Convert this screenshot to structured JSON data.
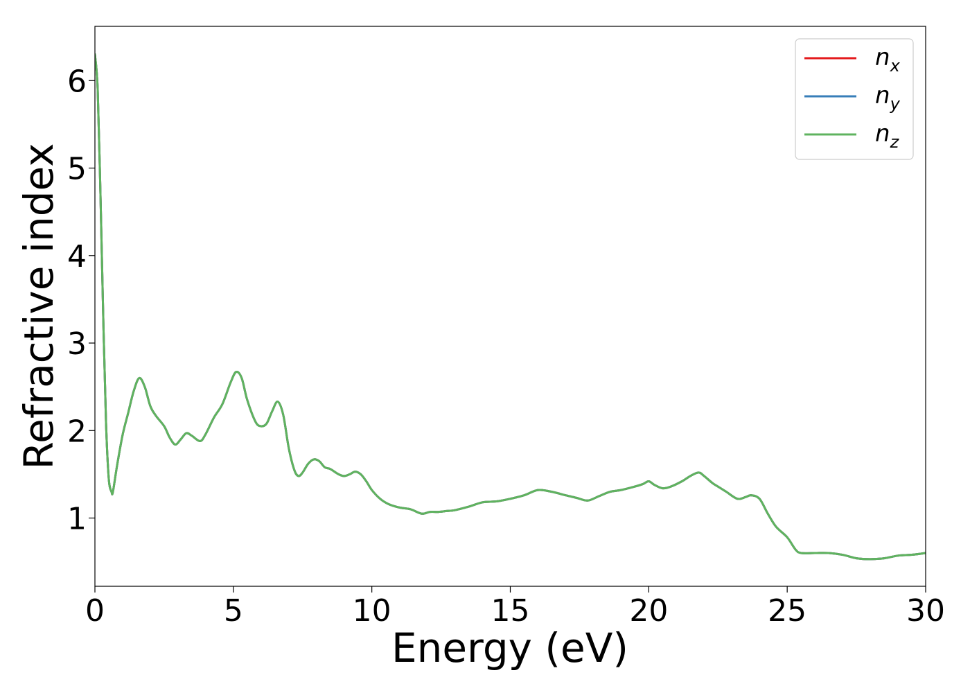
{
  "chart_data": {
    "type": "line",
    "title": "",
    "xlabel": "Energy (eV)",
    "ylabel": "Refractive index",
    "xlim": [
      0,
      30
    ],
    "ylim": [
      0.22,
      6.62
    ],
    "xticks": [
      0,
      5,
      10,
      15,
      20,
      25,
      30
    ],
    "yticks": [
      1,
      2,
      3,
      4,
      5,
      6
    ],
    "grid": false,
    "legend_position": "top-right",
    "series": [
      {
        "name": "n",
        "subscript": "x",
        "color": "#e41a1c"
      },
      {
        "name": "n",
        "subscript": "y",
        "color": "#377eb8"
      },
      {
        "name": "n",
        "subscript": "z",
        "color": "#5fb35f"
      }
    ],
    "x": [
      0.0,
      0.1,
      0.2,
      0.3,
      0.4,
      0.5,
      0.6,
      0.65,
      0.8,
      1.0,
      1.2,
      1.4,
      1.6,
      1.8,
      2.0,
      2.2,
      2.5,
      2.7,
      2.9,
      3.1,
      3.3,
      3.5,
      3.8,
      4.0,
      4.3,
      4.6,
      4.9,
      5.1,
      5.3,
      5.5,
      5.8,
      6.0,
      6.2,
      6.4,
      6.6,
      6.8,
      7.0,
      7.2,
      7.35,
      7.5,
      7.7,
      7.9,
      8.1,
      8.3,
      8.5,
      8.8,
      9.0,
      9.2,
      9.4,
      9.6,
      9.8,
      10.0,
      10.3,
      10.6,
      11.0,
      11.4,
      11.8,
      12.1,
      12.4,
      12.7,
      13.0,
      13.5,
      14.0,
      14.5,
      15.0,
      15.5,
      16.0,
      16.5,
      17.0,
      17.4,
      17.8,
      18.2,
      18.6,
      19.0,
      19.5,
      19.8,
      20.0,
      20.2,
      20.5,
      20.8,
      21.2,
      21.5,
      21.8,
      22.0,
      22.3,
      22.5,
      22.8,
      23.2,
      23.5,
      23.7,
      24.0,
      24.3,
      24.6,
      25.0,
      25.3,
      25.5,
      26.0,
      26.5,
      27.0,
      27.5,
      28.0,
      28.5,
      29.0,
      29.5,
      30.0
    ],
    "y": [
      6.3,
      5.9,
      4.7,
      3.3,
      2.1,
      1.45,
      1.3,
      1.3,
      1.6,
      1.95,
      2.2,
      2.45,
      2.6,
      2.5,
      2.28,
      2.17,
      2.05,
      1.92,
      1.84,
      1.9,
      1.97,
      1.94,
      1.88,
      1.96,
      2.15,
      2.3,
      2.55,
      2.67,
      2.6,
      2.35,
      2.1,
      2.05,
      2.08,
      2.22,
      2.33,
      2.18,
      1.8,
      1.55,
      1.48,
      1.52,
      1.62,
      1.67,
      1.65,
      1.58,
      1.56,
      1.5,
      1.48,
      1.5,
      1.53,
      1.5,
      1.42,
      1.32,
      1.22,
      1.16,
      1.12,
      1.1,
      1.05,
      1.07,
      1.07,
      1.08,
      1.09,
      1.13,
      1.18,
      1.19,
      1.22,
      1.26,
      1.32,
      1.3,
      1.26,
      1.23,
      1.2,
      1.25,
      1.3,
      1.32,
      1.36,
      1.39,
      1.42,
      1.38,
      1.34,
      1.36,
      1.42,
      1.48,
      1.52,
      1.48,
      1.4,
      1.36,
      1.3,
      1.22,
      1.24,
      1.26,
      1.22,
      1.05,
      0.9,
      0.78,
      0.64,
      0.6,
      0.6,
      0.6,
      0.58,
      0.54,
      0.53,
      0.54,
      0.57,
      0.58,
      0.6
    ]
  }
}
